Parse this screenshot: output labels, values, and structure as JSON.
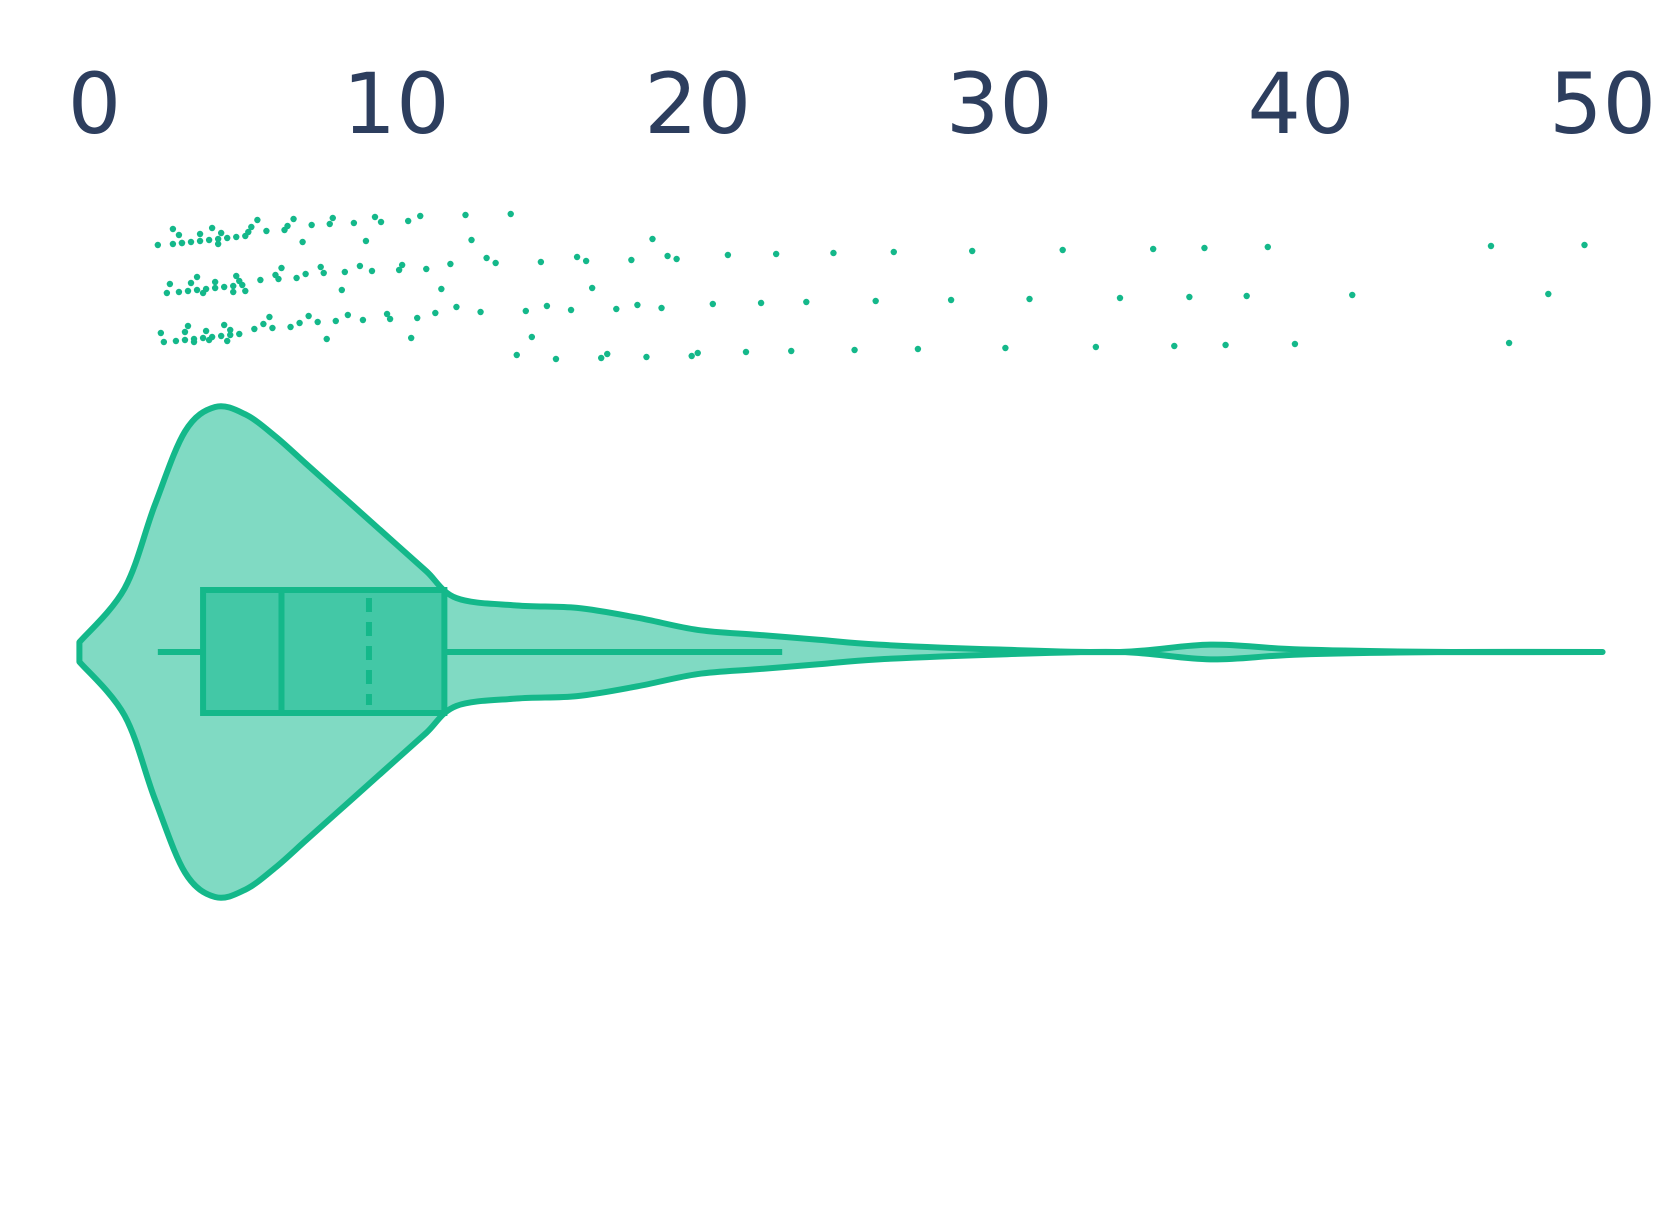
{
  "chart_data": {
    "type": "violin",
    "xlim": [
      -3,
      52.5
    ],
    "xticks": [
      0,
      10,
      20,
      30,
      40,
      50
    ],
    "color": "#14b88a",
    "violin_fill": "#80dac3",
    "box_fill": "#43c8a6",
    "tick_color": "#2d3e5e",
    "density": {
      "x": [
        -0.5,
        1,
        2,
        3,
        4,
        5,
        6,
        7,
        8,
        9,
        10,
        11,
        12,
        14,
        16,
        18,
        20,
        22,
        24,
        26,
        30,
        34,
        37,
        40,
        45,
        50
      ],
      "values": [
        0.04,
        0.26,
        0.6,
        0.9,
        1.0,
        0.97,
        0.88,
        0.77,
        0.66,
        0.55,
        0.44,
        0.33,
        0.22,
        0.19,
        0.18,
        0.14,
        0.09,
        0.07,
        0.05,
        0.03,
        0.01,
        0.0,
        0.03,
        0.01,
        0.0,
        0.0
      ]
    },
    "box": {
      "whisker_low": 2.1,
      "q1": 3.6,
      "median": 6.2,
      "mean": 9.1,
      "q3": 11.6,
      "whisker_high": 22.8
    },
    "strip": {
      "values": [
        2.1,
        2.3,
        2.4,
        2.6,
        2.7,
        2.8,
        2.9,
        3.0,
        3.1,
        3.2,
        3.3,
        3.4,
        3.5,
        3.6,
        3.7,
        3.8,
        3.9,
        4.0,
        4.1,
        4.2,
        4.3,
        4.4,
        4.5,
        4.6,
        4.7,
        4.8,
        4.9,
        5.0,
        2.2,
        2.5,
        2.8,
        3.0,
        3.2,
        3.5,
        3.7,
        4.0,
        4.2,
        4.5,
        4.8,
        5.1,
        5.3,
        5.5,
        5.7,
        5.9,
        6.1,
        6.3,
        6.5,
        6.7,
        2.6,
        3.1,
        3.4,
        3.9,
        4.3,
        4.7,
        5.2,
        5.6,
        6.0,
        6.4,
        6.8,
        7.0,
        7.2,
        7.4,
        7.6,
        7.8,
        8.0,
        8.3,
        8.6,
        8.9,
        9.2,
        9.5,
        9.8,
        10.1,
        10.4,
        10.7,
        11.0,
        5.4,
        5.8,
        6.2,
        6.6,
        7.1,
        7.5,
        7.9,
        8.4,
        8.8,
        9.3,
        9.7,
        10.2,
        10.8,
        11.3,
        11.8,
        12.3,
        12.8,
        13.3,
        13.8,
        14.3,
        14.8,
        15.3,
        15.8,
        16.3,
        16.8,
        17.3,
        17.8,
        18.3,
        18.8,
        19.3,
        19.8,
        12.0,
        13.0,
        14.0,
        15.0,
        16.0,
        17.0,
        18.0,
        19.0,
        20.0,
        20.5,
        21.0,
        21.6,
        22.1,
        22.6,
        23.1,
        23.6,
        24.5,
        25.2,
        25.9,
        26.5,
        27.3,
        28.4,
        29.1,
        30.2,
        31.0,
        32.1,
        33.2,
        34.0,
        35.1,
        35.8,
        36.3,
        36.8,
        37.5,
        38.2,
        38.9,
        39.8,
        41.7,
        46.3,
        46.9,
        48.2,
        49.4,
        3.3,
        3.6,
        4.1,
        4.4,
        4.6,
        2.9,
        3.8,
        5.0,
        6.9,
        7.7,
        8.2,
        9.0,
        10.5,
        11.5,
        12.5,
        14.5,
        16.5,
        18.5
      ]
    }
  }
}
